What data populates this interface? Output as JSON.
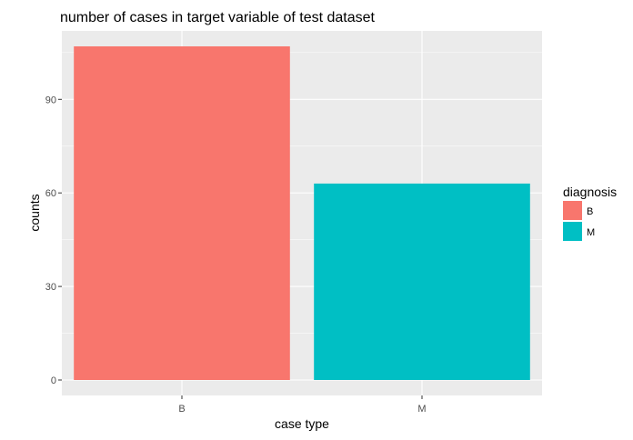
{
  "chart_data": {
    "type": "bar",
    "title": "number of cases in target variable of test dataset",
    "xlabel": "case type",
    "ylabel": "counts",
    "categories": [
      "B",
      "M"
    ],
    "values": [
      107,
      63
    ],
    "ylim": [
      0,
      112
    ],
    "yticks": [
      0,
      30,
      60,
      90
    ],
    "grid": true,
    "legend": {
      "title": "diagnosis",
      "position": "right",
      "entries": [
        "B",
        "M"
      ]
    },
    "colors": {
      "B": "#F8766D",
      "M": "#00BFC4"
    },
    "panel_background": "#EBEBEB",
    "gridline_color": "#FFFFFF"
  }
}
